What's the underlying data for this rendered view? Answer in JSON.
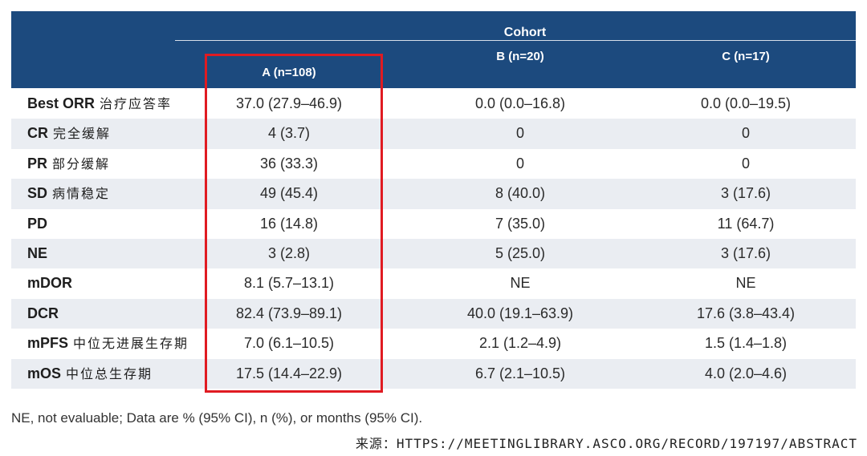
{
  "header": {
    "cohort_title": "Cohort",
    "columns": [
      "A (n=108)",
      "B (n=20)",
      "C (n=17)"
    ]
  },
  "rows": [
    {
      "label": "Best ORR",
      "label_cn": "治疗应答率",
      "values": [
        "37.0 (27.9–46.9)",
        "0.0 (0.0–16.8)",
        "0.0 (0.0–19.5)"
      ]
    },
    {
      "label": "CR",
      "label_cn": "完全缓解",
      "values": [
        "4 (3.7)",
        "0",
        "0"
      ]
    },
    {
      "label": "PR",
      "label_cn": "部分缓解",
      "values": [
        "36 (33.3)",
        "0",
        "0"
      ]
    },
    {
      "label": "SD",
      "label_cn": "病情稳定",
      "values": [
        "49 (45.4)",
        "8 (40.0)",
        "3 (17.6)"
      ]
    },
    {
      "label": "PD",
      "label_cn": "",
      "values": [
        "16 (14.8)",
        "7 (35.0)",
        "11 (64.7)"
      ]
    },
    {
      "label": "NE",
      "label_cn": "",
      "values": [
        "3 (2.8)",
        "5 (25.0)",
        "3 (17.6)"
      ]
    },
    {
      "label": "mDOR",
      "label_cn": "",
      "values": [
        "8.1 (5.7–13.1)",
        "NE",
        "NE"
      ]
    },
    {
      "label": "DCR",
      "label_cn": "",
      "values": [
        "82.4 (73.9–89.1)",
        "40.0 (19.1–63.9)",
        "17.6 (3.8–43.4)"
      ]
    },
    {
      "label": "mPFS",
      "label_cn": "中位无进展生存期",
      "values": [
        "7.0 (6.1–10.5)",
        "2.1 (1.2–4.9)",
        "1.5 (1.4–1.8)"
      ]
    },
    {
      "label": "mOS",
      "label_cn": "中位总生存期",
      "values": [
        "17.5 (14.4–22.9)",
        "6.7 (2.1–10.5)",
        "4.0 (2.0–4.6)"
      ]
    }
  ],
  "footnote": "NE, not evaluable; Data are % (95% CI), n (%), or months (95% CI).",
  "source": "来源：HTTPS://MEETINGLIBRARY.ASCO.ORG/RECORD/197197/ABSTRACT",
  "colors": {
    "header_bg": "#1c4a7e",
    "row_shade": "#eaedf2",
    "highlight": "#e01b22"
  }
}
